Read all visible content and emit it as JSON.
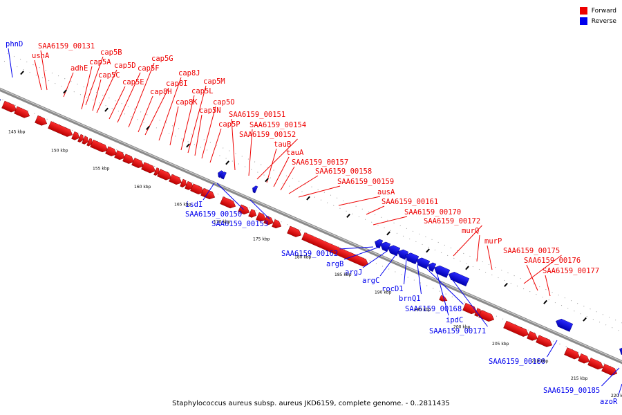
{
  "legend": {
    "forward": {
      "label": "Forward",
      "color": "#ee0000"
    },
    "reverse": {
      "label": "Reverse",
      "color": "#0000ee"
    }
  },
  "caption": "Staphylococcus aureus subsp. aureus JKD6159, complete genome. - 0..2811435",
  "scale": {
    "unit": "kbp",
    "ticks": [
      145,
      150,
      155,
      160,
      165,
      170,
      175,
      180,
      185,
      190,
      195,
      200,
      205,
      210,
      215,
      220
    ]
  },
  "genes": [
    {
      "name": "phnD",
      "strand": "reverse"
    },
    {
      "name": "ushA",
      "strand": "forward"
    },
    {
      "name": "SAA6159_00131",
      "strand": "forward"
    },
    {
      "name": "adhE",
      "strand": "forward"
    },
    {
      "name": "cap5A",
      "strand": "forward"
    },
    {
      "name": "cap5B",
      "strand": "forward"
    },
    {
      "name": "cap5C",
      "strand": "forward"
    },
    {
      "name": "cap5D",
      "strand": "forward"
    },
    {
      "name": "cap5E",
      "strand": "forward"
    },
    {
      "name": "cap5F",
      "strand": "forward"
    },
    {
      "name": "cap5G",
      "strand": "forward"
    },
    {
      "name": "cap8H",
      "strand": "forward"
    },
    {
      "name": "cap8I",
      "strand": "forward"
    },
    {
      "name": "cap8J",
      "strand": "forward"
    },
    {
      "name": "cap8K",
      "strand": "forward"
    },
    {
      "name": "cap5L",
      "strand": "forward"
    },
    {
      "name": "cap5M",
      "strand": "forward"
    },
    {
      "name": "cap5N",
      "strand": "forward"
    },
    {
      "name": "cap5O",
      "strand": "forward"
    },
    {
      "name": "cap5P",
      "strand": "forward"
    },
    {
      "name": "SAA6159_00151",
      "strand": "forward"
    },
    {
      "name": "SAA6159_00154",
      "strand": "forward"
    },
    {
      "name": "SAA6159_00152",
      "strand": "forward"
    },
    {
      "name": "tauB",
      "strand": "forward"
    },
    {
      "name": "tauA",
      "strand": "forward"
    },
    {
      "name": "SAA6159_00157",
      "strand": "forward"
    },
    {
      "name": "SAA6159_00158",
      "strand": "forward"
    },
    {
      "name": "SAA6159_00159",
      "strand": "forward"
    },
    {
      "name": "ausA",
      "strand": "forward"
    },
    {
      "name": "SAA6159_00161",
      "strand": "forward"
    },
    {
      "name": "SAA6159_00170",
      "strand": "forward"
    },
    {
      "name": "SAA6159_00172",
      "strand": "forward"
    },
    {
      "name": "murQ",
      "strand": "forward"
    },
    {
      "name": "murP",
      "strand": "forward"
    },
    {
      "name": "SAA6159_00175",
      "strand": "forward"
    },
    {
      "name": "SAA6159_00176",
      "strand": "forward"
    },
    {
      "name": "SAA6159_00177",
      "strand": "forward"
    },
    {
      "name": "isdI",
      "strand": "reverse"
    },
    {
      "name": "SAA6159_00150",
      "strand": "reverse"
    },
    {
      "name": "SAA6159_00153",
      "strand": "reverse"
    },
    {
      "name": "SAA6159_00162",
      "strand": "reverse"
    },
    {
      "name": "argB",
      "strand": "reverse"
    },
    {
      "name": "argJ",
      "strand": "reverse"
    },
    {
      "name": "argC",
      "strand": "reverse"
    },
    {
      "name": "rocD1",
      "strand": "reverse"
    },
    {
      "name": "brnQ1",
      "strand": "reverse"
    },
    {
      "name": "SAA6159_00168",
      "strand": "reverse"
    },
    {
      "name": "ipdC",
      "strand": "reverse"
    },
    {
      "name": "SAA6159_00171",
      "strand": "reverse"
    },
    {
      "name": "SAA6159_00180",
      "strand": "reverse"
    },
    {
      "name": "SAA6159_00185",
      "strand": "reverse"
    },
    {
      "name": "azoR",
      "strand": "reverse"
    }
  ]
}
